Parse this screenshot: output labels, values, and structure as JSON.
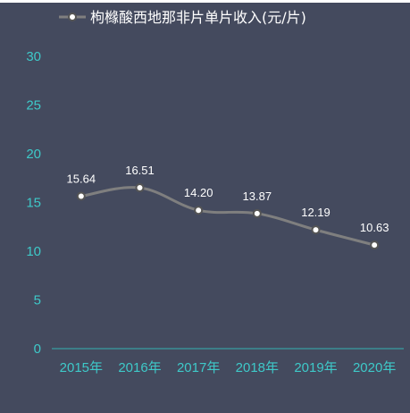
{
  "chart_data": {
    "type": "line",
    "title": "",
    "xlabel": "",
    "ylabel": "",
    "categories": [
      "2015年",
      "2016年",
      "2017年",
      "2018年",
      "2019年",
      "2020年"
    ],
    "series": [
      {
        "name": "枸橼酸西地那非片单片收入(元/片)",
        "values": [
          15.64,
          16.51,
          14.2,
          13.87,
          12.19,
          10.63
        ],
        "labels": [
          "15.64",
          "16.51",
          "14.20",
          "13.87",
          "12.19",
          "10.63"
        ]
      }
    ],
    "ylim": [
      0,
      30
    ],
    "yticks": [
      "0",
      "5",
      "10",
      "15",
      "20",
      "25",
      "30"
    ],
    "grid": false,
    "legend_position": "top",
    "smooth": true
  },
  "colors": {
    "background": "#444a5e",
    "line": "#7f7f7f",
    "marker_fill": "#ffffff",
    "marker_stroke": "#555555",
    "tick_text": "#3ec9c9",
    "axis_line": "#35b3b3",
    "label_text": "#ffffff"
  }
}
